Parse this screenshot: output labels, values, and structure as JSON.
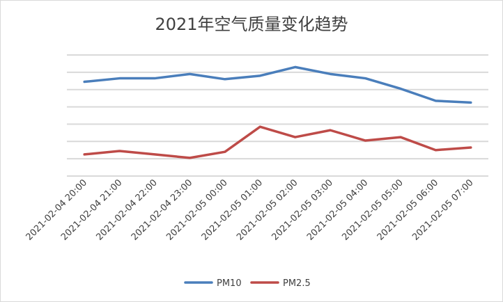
{
  "chart_data": {
    "type": "line",
    "title": "2021年空气质量变化趋势",
    "xlabel": "",
    "ylabel": "",
    "ylim": [
      0,
      140
    ],
    "ygrid_step": 20,
    "grid": true,
    "legend": "bottom",
    "categories": [
      "2021-02-04 20:00",
      "2021-02-04 21:00",
      "2021-02-04 22:00",
      "2021-02-04 23:00",
      "2021-02-05 00:00",
      "2021-02-05 01:00",
      "2021-02-05 02:00",
      "2021-02-05 03:00",
      "2021-02-05 04:00",
      "2021-02-05 05:00",
      "2021-02-05 06:00",
      "2021-02-05 07:00"
    ],
    "series": [
      {
        "name": "PM10",
        "color": "#4a7ebb",
        "values": [
          109,
          113,
          113,
          118,
          112,
          116,
          126,
          118,
          113,
          101,
          87,
          85
        ]
      },
      {
        "name": "PM2.5",
        "color": "#be4b48",
        "values": [
          25,
          29,
          25,
          21,
          28,
          57,
          45,
          53,
          41,
          45,
          30,
          33
        ]
      }
    ]
  }
}
